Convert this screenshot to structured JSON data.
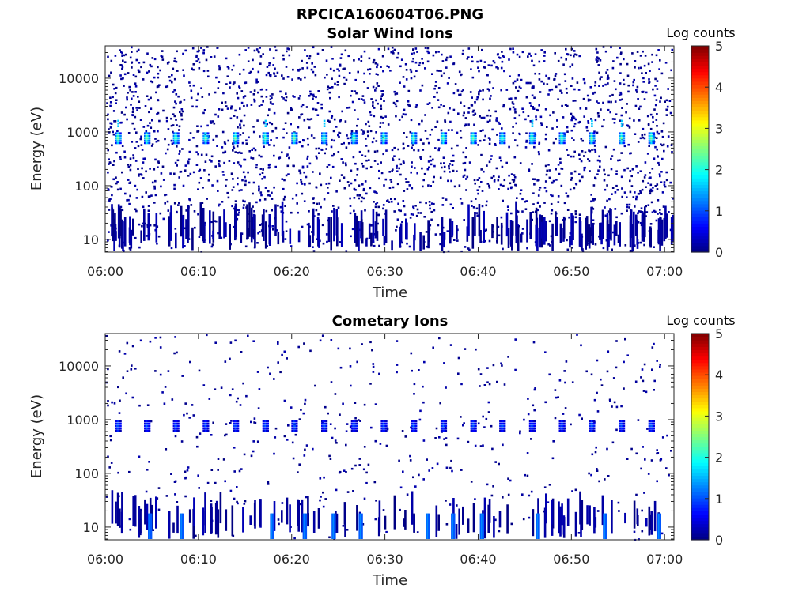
{
  "figure": {
    "title": "RPCICA160604T06.PNG"
  },
  "chart_data": [
    {
      "type": "heatmap",
      "title": "Solar Wind Ions",
      "xlabel": "Time",
      "ylabel": "Energy (eV)",
      "x_range": [
        "06:00",
        "07:01"
      ],
      "x_ticks": [
        "06:00",
        "06:10",
        "06:20",
        "06:30",
        "06:40",
        "06:50",
        "07:00"
      ],
      "y_scale": "log",
      "y_range": [
        5.8,
        40000
      ],
      "y_ticks": [
        {
          "value": 10,
          "label": "10"
        },
        {
          "value": 100,
          "label": "100"
        },
        {
          "value": 1000,
          "label": "1000"
        },
        {
          "value": 10000,
          "label": "10000"
        }
      ],
      "colorbar": {
        "label": "Log counts",
        "range": [
          0,
          5
        ],
        "ticks": [
          "0",
          "1",
          "2",
          "3",
          "4",
          "5"
        ],
        "colormap": "jet"
      },
      "background_log_count": 0,
      "noise_density": "high",
      "peaks": {
        "energy_eV": 800,
        "log_count": 2.5,
        "times_min": [
          1.3,
          4.4,
          7.5,
          10.7,
          13.9,
          17.1,
          20.2,
          23.4,
          26.6,
          29.8,
          33.0,
          36.2,
          39.4,
          42.5,
          45.7,
          48.9,
          52.1,
          55.3,
          58.5
        ]
      },
      "secondary_peaks": {
        "energy_eV": 1500,
        "log_count": 1.6,
        "times_min": [
          1.3,
          17.1,
          23.4,
          45.7,
          52.1,
          55.3
        ]
      },
      "grid": false
    },
    {
      "type": "heatmap",
      "title": "Cometary Ions",
      "xlabel": "Time",
      "ylabel": "Energy (eV)",
      "x_range": [
        "06:00",
        "07:01"
      ],
      "x_ticks": [
        "06:00",
        "06:10",
        "06:20",
        "06:30",
        "06:40",
        "06:50",
        "07:00"
      ],
      "y_scale": "log",
      "y_range": [
        5.8,
        40000
      ],
      "y_ticks": [
        {
          "value": 10,
          "label": "10"
        },
        {
          "value": 100,
          "label": "100"
        },
        {
          "value": 1000,
          "label": "1000"
        },
        {
          "value": 10000,
          "label": "10000"
        }
      ],
      "colorbar": {
        "label": "Log counts",
        "range": [
          0,
          5
        ],
        "ticks": [
          "0",
          "1",
          "2",
          "3",
          "4",
          "5"
        ],
        "colormap": "jet"
      },
      "background_log_count": 0,
      "noise_density": "low",
      "peaks": {
        "energy_eV": 800,
        "log_count": 1.1,
        "times_min": [
          1.3,
          4.4,
          7.5,
          10.7,
          13.9,
          17.1,
          20.2,
          23.4,
          26.6,
          29.8,
          33.0,
          36.2,
          39.4,
          42.5,
          45.7,
          48.9,
          52.1,
          55.3,
          58.5
        ]
      },
      "low_energy_bursts": {
        "energy_range_eV": [
          6,
          18
        ],
        "log_count": 1.3,
        "times_min": [
          4.7,
          8.1,
          17.8,
          21.3,
          24.4,
          27.3,
          34.5,
          37.2,
          40.3,
          46.3,
          53.5,
          59.3
        ]
      },
      "grid": false
    }
  ]
}
